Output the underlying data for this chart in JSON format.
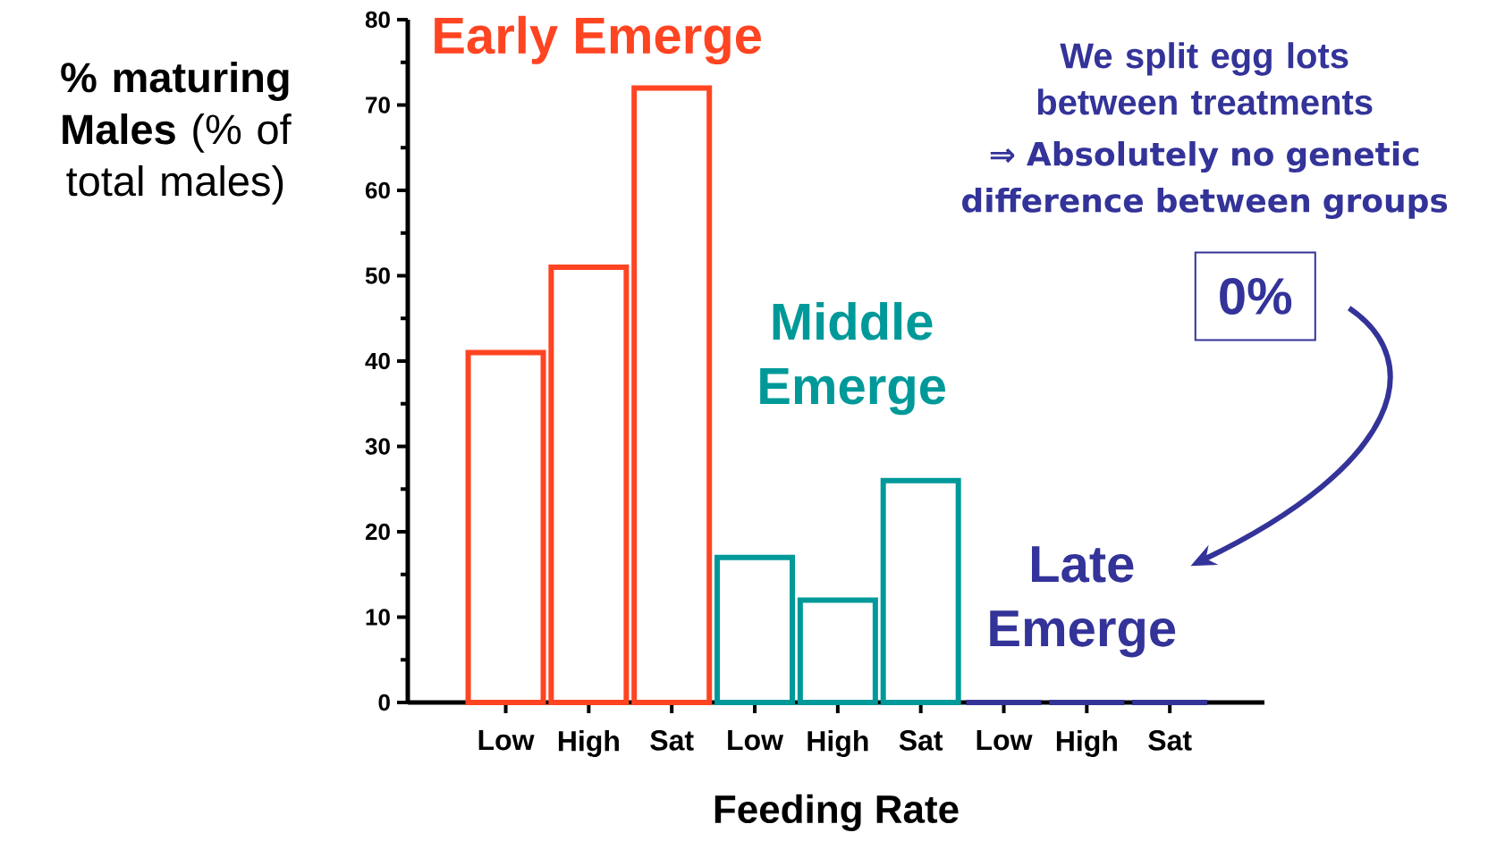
{
  "chart_data": {
    "type": "bar",
    "xlabel": "Feeding Rate",
    "ylabel": "**% maturing Males** (% of total males)",
    "categories": [
      "Low",
      "High",
      "Sat",
      "Low",
      "High",
      "Sat",
      "Low",
      "High",
      "Sat"
    ],
    "values": [
      41,
      51,
      72,
      17,
      12,
      26,
      0,
      0,
      0
    ],
    "colors": [
      "#ff4422",
      "#ff4422",
      "#ff4422",
      "#009999",
      "#009999",
      "#009999",
      "#333399",
      "#333399",
      "#333399"
    ],
    "ylim": [
      0,
      80
    ],
    "yticks": [
      0,
      10,
      20,
      30,
      40,
      50,
      60,
      70,
      80
    ],
    "annotations": [
      "Early Emerge",
      "Middle Emerge",
      "Late Emerge",
      "We split egg lots between treatments",
      "⇒ Absolutely no genetic difference between groups",
      "0%"
    ]
  }
}
